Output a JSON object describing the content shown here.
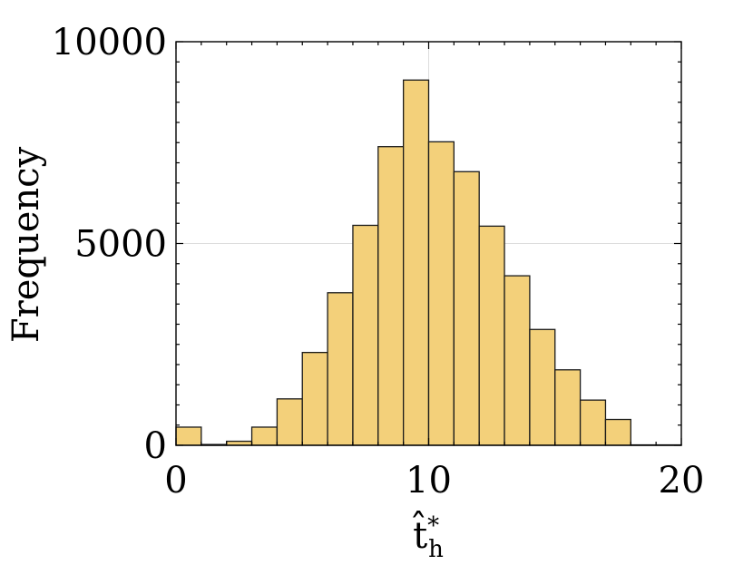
{
  "chart_data": {
    "type": "bar",
    "title": "",
    "xlabel": "t̂*h",
    "xlabel_parts": {
      "base": "t̂",
      "sup": "*",
      "sub": "h"
    },
    "ylabel": "Frequency",
    "xlim": [
      0,
      20
    ],
    "ylim": [
      0,
      10000
    ],
    "x_ticks": [
      0,
      10,
      20
    ],
    "y_ticks": [
      0,
      5000,
      10000
    ],
    "x_tick_labels": [
      "0",
      "10",
      "20"
    ],
    "y_tick_labels": [
      "0",
      "5000",
      "10000"
    ],
    "grid": true,
    "bin_width": 1,
    "bins": [
      {
        "x0": 0,
        "x1": 1,
        "value": 450
      },
      {
        "x0": 1,
        "x1": 2,
        "value": 20
      },
      {
        "x0": 2,
        "x1": 3,
        "value": 100
      },
      {
        "x0": 3,
        "x1": 4,
        "value": 450
      },
      {
        "x0": 4,
        "x1": 5,
        "value": 1150
      },
      {
        "x0": 5,
        "x1": 6,
        "value": 2300
      },
      {
        "x0": 6,
        "x1": 7,
        "value": 3780
      },
      {
        "x0": 7,
        "x1": 8,
        "value": 5450
      },
      {
        "x0": 8,
        "x1": 9,
        "value": 7400
      },
      {
        "x0": 9,
        "x1": 10,
        "value": 9050
      },
      {
        "x0": 10,
        "x1": 11,
        "value": 7520
      },
      {
        "x0": 11,
        "x1": 12,
        "value": 6780
      },
      {
        "x0": 12,
        "x1": 13,
        "value": 5430
      },
      {
        "x0": 13,
        "x1": 14,
        "value": 4200
      },
      {
        "x0": 14,
        "x1": 15,
        "value": 2870
      },
      {
        "x0": 15,
        "x1": 16,
        "value": 1870
      },
      {
        "x0": 16,
        "x1": 17,
        "value": 1120
      },
      {
        "x0": 17,
        "x1": 18,
        "value": 640
      },
      {
        "x0": 18,
        "x1": 19,
        "value": 10
      },
      {
        "x0": 19,
        "x1": 20,
        "value": 10
      }
    ],
    "colors": {
      "bar_fill": "#f3d07a",
      "bar_edge": "#1a1a1a",
      "grid": "#dddddd"
    }
  }
}
